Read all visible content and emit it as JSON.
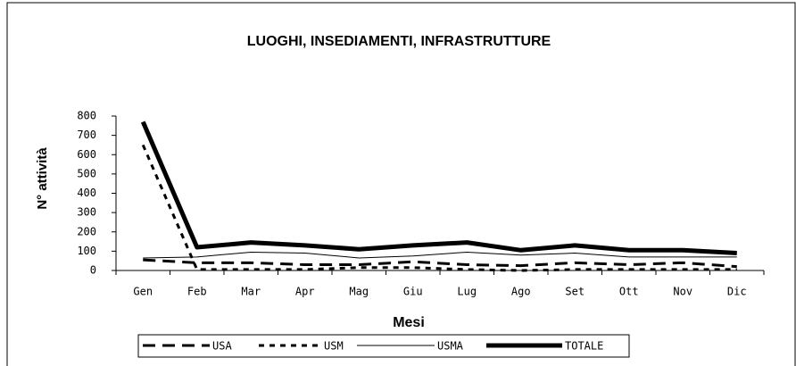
{
  "chart_data": {
    "type": "line",
    "title": "LUOGHI, INSEDIAMENTI, INFRASTRUTTURE",
    "x_label": "Mesi",
    "y_label": "N° attività",
    "categories": [
      "Gen",
      "Feb",
      "Mar",
      "Apr",
      "Mag",
      "Giu",
      "Lug",
      "Ago",
      "Set",
      "Ott",
      "Nov",
      "Dic"
    ],
    "ylim": [
      0,
      800
    ],
    "yticks": [
      0,
      100,
      200,
      300,
      400,
      500,
      600,
      700,
      800
    ],
    "legend": "bottom",
    "series": [
      {
        "name": "USA",
        "color": "#000000",
        "line_style": "long-dash",
        "values": [
          55,
          40,
          40,
          30,
          30,
          45,
          30,
          25,
          40,
          30,
          40,
          20
        ]
      },
      {
        "name": "USM",
        "color": "#000000",
        "line_style": "short-dash",
        "values": [
          650,
          5,
          5,
          5,
          15,
          15,
          5,
          0,
          5,
          5,
          5,
          5
        ]
      },
      {
        "name": "USMA",
        "color": "#000000",
        "line_style": "thin",
        "values": [
          65,
          70,
          95,
          90,
          65,
          75,
          95,
          80,
          90,
          70,
          70,
          70
        ]
      },
      {
        "name": "TOTALE",
        "color": "#000000",
        "line_style": "thick",
        "values": [
          770,
          120,
          145,
          130,
          110,
          130,
          145,
          105,
          130,
          105,
          105,
          90
        ]
      }
    ]
  }
}
